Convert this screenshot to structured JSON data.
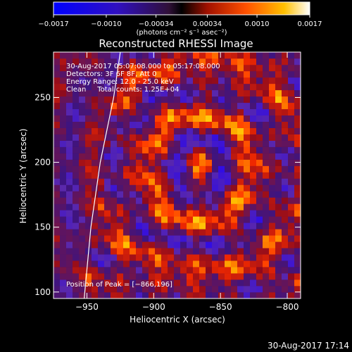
{
  "chart_data": {
    "type": "heatmap",
    "title": "Reconstructed RHESSI Image",
    "xlabel": "Heliocentric X (arcsec)",
    "ylabel": "Heliocentric Y (arcsec)",
    "xlim": [
      -975,
      -790
    ],
    "ylim": [
      95,
      285
    ],
    "xticks": [
      -950,
      -900,
      -850,
      -800
    ],
    "xtick_labels": [
      "−950",
      "−900",
      "−850",
      "−800"
    ],
    "yticks": [
      100,
      150,
      200,
      250
    ],
    "ytick_labels": [
      "100",
      "150",
      "200",
      "250"
    ],
    "colorbar": {
      "range": [
        -0.0017,
        0.0017
      ],
      "ticks": [
        -0.0017,
        -0.001,
        -0.00034,
        0.00034,
        0.001,
        0.0017
      ],
      "tick_labels": [
        "−0.0017",
        "−0.0010",
        "−0.00034",
        "0.00034",
        "0.0010",
        "0.0017"
      ],
      "unit_label": "(photons cm⁻² s⁻¹ asec⁻²)"
    },
    "annotations": [
      "30-Aug-2017 05:07:08.000 to 05:17:08.000",
      "Detectors: 3F 6F 8F, Att 0",
      "Energy Range: 12.0 - 25.0 keV",
      "Clean     Total counts: 1.25E+04",
      "Position of Peak = [−866,196]"
    ],
    "peak_position": [
      -866,
      196
    ],
    "limb_curve": [
      [
        -925,
        285
      ],
      [
        -930,
        250
      ],
      [
        -940,
        200
      ],
      [
        -947,
        150
      ],
      [
        -952,
        95
      ]
    ]
  },
  "timestamp": "30-Aug-2017 17:14",
  "colors": {
    "background": "#000000",
    "text": "#ffffff",
    "limb": "#ffffff"
  }
}
